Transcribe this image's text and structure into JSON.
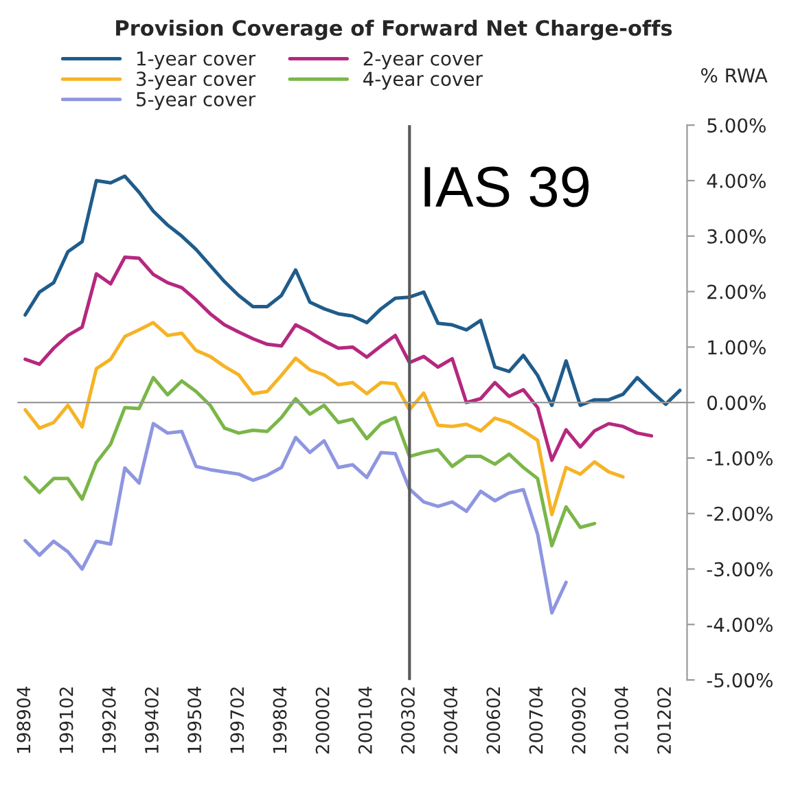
{
  "chart_data": {
    "type": "line",
    "title": "Provision Coverage of Forward Net Charge-offs",
    "ylabel": "% RWA",
    "categories": [
      "198904",
      null,
      null,
      "199102",
      null,
      null,
      "199204",
      null,
      null,
      "199402",
      null,
      null,
      "199504",
      null,
      null,
      "199702",
      null,
      null,
      "199804",
      null,
      null,
      "200002",
      null,
      null,
      "200104",
      null,
      null,
      "200302",
      null,
      null,
      "200404",
      null,
      null,
      "200602",
      null,
      null,
      "200704",
      null,
      null,
      "200902",
      null,
      null,
      "201004",
      null,
      null,
      "201202",
      null
    ],
    "series": [
      {
        "name": "1-year cover",
        "color": "#1f5c8b",
        "values": [
          1.58,
          1.99,
          2.16,
          2.72,
          2.9,
          4.0,
          3.96,
          4.08,
          3.79,
          3.45,
          3.2,
          3.0,
          2.76,
          2.47,
          2.18,
          1.93,
          1.73,
          1.73,
          1.93,
          2.39,
          1.81,
          1.69,
          1.6,
          1.56,
          1.44,
          1.69,
          1.88,
          1.9,
          1.99,
          1.43,
          1.4,
          1.31,
          1.48,
          0.64,
          0.56,
          0.85,
          0.49,
          -0.05,
          0.75,
          -0.05,
          0.05,
          0.05,
          0.15,
          0.45,
          0.2,
          -0.03,
          0.22
        ]
      },
      {
        "name": "2-year cover",
        "color": "#b5287f",
        "values": [
          0.78,
          0.69,
          0.98,
          1.21,
          1.36,
          2.32,
          2.14,
          2.62,
          2.6,
          2.31,
          2.16,
          2.07,
          1.85,
          1.6,
          1.4,
          1.27,
          1.15,
          1.05,
          1.02,
          1.4,
          1.27,
          1.11,
          0.98,
          1.0,
          0.82,
          1.02,
          1.21,
          0.72,
          0.83,
          0.64,
          0.79,
          0.0,
          0.07,
          0.36,
          0.11,
          0.23,
          -0.09,
          -1.04,
          -0.49,
          -0.8,
          -0.51,
          -0.38,
          -0.43,
          -0.55,
          -0.6,
          null,
          null
        ]
      },
      {
        "name": "3-year cover",
        "color": "#f5b325",
        "values": [
          -0.13,
          -0.46,
          -0.36,
          -0.05,
          -0.44,
          0.61,
          0.78,
          1.19,
          1.31,
          1.44,
          1.21,
          1.25,
          0.94,
          0.83,
          0.65,
          0.5,
          0.16,
          0.2,
          0.49,
          0.8,
          0.59,
          0.5,
          0.32,
          0.36,
          0.16,
          0.36,
          0.34,
          -0.13,
          0.17,
          -0.41,
          -0.43,
          -0.39,
          -0.51,
          -0.28,
          -0.36,
          -0.51,
          -0.68,
          -2.02,
          -1.17,
          -1.29,
          -1.07,
          -1.25,
          -1.34,
          null,
          null,
          null,
          null
        ]
      },
      {
        "name": "4-year cover",
        "color": "#7ab648",
        "values": [
          -1.35,
          -1.62,
          -1.37,
          -1.37,
          -1.74,
          -1.08,
          -0.75,
          -0.09,
          -0.11,
          0.45,
          0.14,
          0.39,
          0.2,
          -0.05,
          -0.46,
          -0.55,
          -0.5,
          -0.52,
          -0.27,
          0.07,
          -0.21,
          -0.05,
          -0.36,
          -0.3,
          -0.65,
          -0.38,
          -0.27,
          -0.97,
          -0.9,
          -0.85,
          -1.15,
          -0.97,
          -0.97,
          -1.11,
          -0.93,
          -1.17,
          -1.37,
          -2.58,
          -1.88,
          -2.25,
          -2.18,
          null,
          null,
          null,
          null,
          null,
          null
        ]
      },
      {
        "name": "5-year cover",
        "color": "#8e96e0",
        "values": [
          -2.49,
          -2.75,
          -2.5,
          -2.69,
          -3.0,
          -2.5,
          -2.55,
          -1.18,
          -1.45,
          -0.38,
          -0.55,
          -0.52,
          -1.15,
          -1.21,
          -1.25,
          -1.29,
          -1.4,
          -1.31,
          -1.17,
          -0.63,
          -0.9,
          -0.69,
          -1.17,
          -1.12,
          -1.35,
          -0.9,
          -0.92,
          -1.56,
          -1.79,
          -1.87,
          -1.79,
          -1.96,
          -1.6,
          -1.77,
          -1.63,
          -1.57,
          -2.37,
          -3.79,
          -3.24,
          null,
          null,
          null,
          null,
          null,
          null,
          null,
          null
        ]
      }
    ],
    "ylim": [
      -5,
      5
    ],
    "yticks": [
      {
        "value": -5,
        "label": "-5.00%"
      },
      {
        "value": -4,
        "label": "-4.00%"
      },
      {
        "value": -3,
        "label": "-3.00%"
      },
      {
        "value": -2,
        "label": "-2.00%"
      },
      {
        "value": -1,
        "label": "-1.00%"
      },
      {
        "value": 0,
        "label": "0.00%"
      },
      {
        "value": 1,
        "label": "1.00%"
      },
      {
        "value": 2,
        "label": "2.00%"
      },
      {
        "value": 3,
        "label": "3.00%"
      },
      {
        "value": 4,
        "label": "4.00%"
      },
      {
        "value": 5,
        "label": "5.00%"
      }
    ],
    "ref_lines": [
      {
        "axis": "x",
        "value": "200302",
        "color": "#595959"
      }
    ],
    "annotations": [
      "IAS 39"
    ],
    "legend": "top left",
    "grid": false,
    "marker": "none",
    "line_style": "solid"
  }
}
